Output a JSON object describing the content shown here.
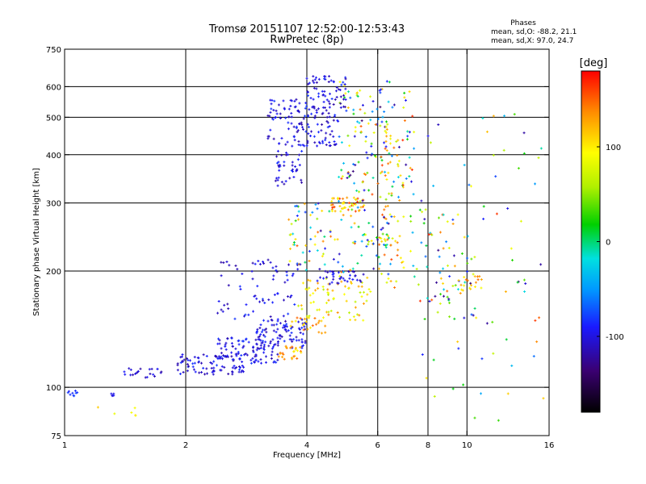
{
  "chart_data": {
    "type": "scatter",
    "title": "Tromsø 20151107 12:52:00-12:53:43",
    "subtitle": "RwPretec (8p)",
    "stats": {
      "heading": "Phases",
      "line1": "mean, sd,O: -88.2, 21.1",
      "line2": "mean, sd,X:  97.0, 24.7"
    },
    "xlabel": "Frequency [MHz]",
    "ylabel": "Stationary phase Virtual Height [km]",
    "xscale": "log",
    "yscale": "log",
    "xlim": [
      1,
      16
    ],
    "ylim": [
      75,
      750
    ],
    "xticks": [
      {
        "value": 1,
        "label": "1"
      },
      {
        "value": 2,
        "label": "2"
      },
      {
        "value": 4,
        "label": "4"
      },
      {
        "value": 6,
        "label": "6"
      },
      {
        "value": 8,
        "label": "8"
      },
      {
        "value": 10,
        "label": "10"
      },
      {
        "value": 16,
        "label": "16"
      }
    ],
    "yticks": [
      {
        "value": 75,
        "label": "75"
      },
      {
        "value": 100,
        "label": "100"
      },
      {
        "value": 200,
        "label": "200"
      },
      {
        "value": 300,
        "label": "300"
      },
      {
        "value": 400,
        "label": "400"
      },
      {
        "value": 500,
        "label": "500"
      },
      {
        "value": 600,
        "label": "600"
      },
      {
        "value": 750,
        "label": "750"
      }
    ],
    "xgrid": [
      2,
      4,
      6,
      8,
      10
    ],
    "ygrid": [
      100,
      200,
      300,
      400,
      500,
      600
    ],
    "colorbar": {
      "label": "[deg]",
      "range": [
        -180,
        180
      ],
      "ticks": [
        {
          "value": 100,
          "label": "100"
        },
        {
          "value": 0,
          "label": "0"
        },
        {
          "value": -100,
          "label": "-100"
        }
      ]
    },
    "clusters": [
      {
        "x": [
          1.0,
          1.08
        ],
        "y": [
          95,
          98
        ],
        "phase": [
          -95,
          -60
        ],
        "count": 10
      },
      {
        "x": [
          1.25,
          1.35
        ],
        "y": [
          94,
          98
        ],
        "phase": [
          -110,
          -80
        ],
        "count": 5
      },
      {
        "x": [
          1.4,
          1.75
        ],
        "y": [
          106,
          112
        ],
        "phase": [
          -120,
          -90
        ],
        "count": 22
      },
      {
        "x": [
          1.15,
          1.75
        ],
        "y": [
          84,
          90
        ],
        "phase": [
          80,
          140
        ],
        "count": 6
      },
      {
        "x": [
          1.9,
          2.8
        ],
        "y": [
          108,
          122
        ],
        "phase": [
          -120,
          -80
        ],
        "count": 90
      },
      {
        "x": [
          2.4,
          3.4
        ],
        "y": [
          115,
          135
        ],
        "phase": [
          -120,
          -80
        ],
        "count": 90
      },
      {
        "x": [
          3.0,
          4.0
        ],
        "y": [
          125,
          150
        ],
        "phase": [
          -120,
          -80
        ],
        "count": 90
      },
      {
        "x": [
          3.4,
          3.9
        ],
        "y": [
          118,
          128
        ],
        "phase": [
          90,
          150
        ],
        "count": 25
      },
      {
        "x": [
          3.6,
          4.5
        ],
        "y": [
          138,
          152
        ],
        "phase": [
          90,
          150
        ],
        "count": 25
      },
      {
        "x": [
          2.4,
          3.8
        ],
        "y": [
          150,
          215
        ],
        "phase": [
          -120,
          -80
        ],
        "count": 70
      },
      {
        "x": [
          3.8,
          5.8
        ],
        "y": [
          148,
          195
        ],
        "phase": [
          60,
          140
        ],
        "count": 70
      },
      {
        "x": [
          4.2,
          5.6
        ],
        "y": [
          185,
          200
        ],
        "phase": [
          -120,
          -80
        ],
        "count": 40
      },
      {
        "x": [
          3.6,
          6.5
        ],
        "y": [
          195,
          300
        ],
        "phase": [
          -130,
          160
        ],
        "count": 120
      },
      {
        "x": [
          4.6,
          5.6
        ],
        "y": [
          285,
          310
        ],
        "phase": [
          80,
          170
        ],
        "count": 45
      },
      {
        "x": [
          4.8,
          7.4
        ],
        "y": [
          300,
          640
        ],
        "phase": [
          -140,
          170
        ],
        "count": 150
      },
      {
        "x": [
          3.2,
          4.8
        ],
        "y": [
          420,
          560
        ],
        "phase": [
          -120,
          -80
        ],
        "count": 140
      },
      {
        "x": [
          4.0,
          5.0
        ],
        "y": [
          520,
          640
        ],
        "phase": [
          -120,
          -80
        ],
        "count": 60
      },
      {
        "x": [
          3.3,
          3.9
        ],
        "y": [
          330,
          410
        ],
        "phase": [
          -120,
          -80
        ],
        "count": 40
      },
      {
        "x": [
          6.0,
          7.0
        ],
        "y": [
          180,
          480
        ],
        "phase": [
          60,
          160
        ],
        "count": 60
      },
      {
        "x": [
          7.2,
          10.5
        ],
        "y": [
          150,
          290
        ],
        "phase": [
          -140,
          170
        ],
        "count": 70
      },
      {
        "x": [
          9.5,
          11.0
        ],
        "y": [
          175,
          195
        ],
        "phase": [
          80,
          150
        ],
        "count": 20
      },
      {
        "x": [
          7.5,
          15.5
        ],
        "y": [
          80,
          520
        ],
        "phase": [
          -140,
          170
        ],
        "count": 70
      }
    ]
  }
}
